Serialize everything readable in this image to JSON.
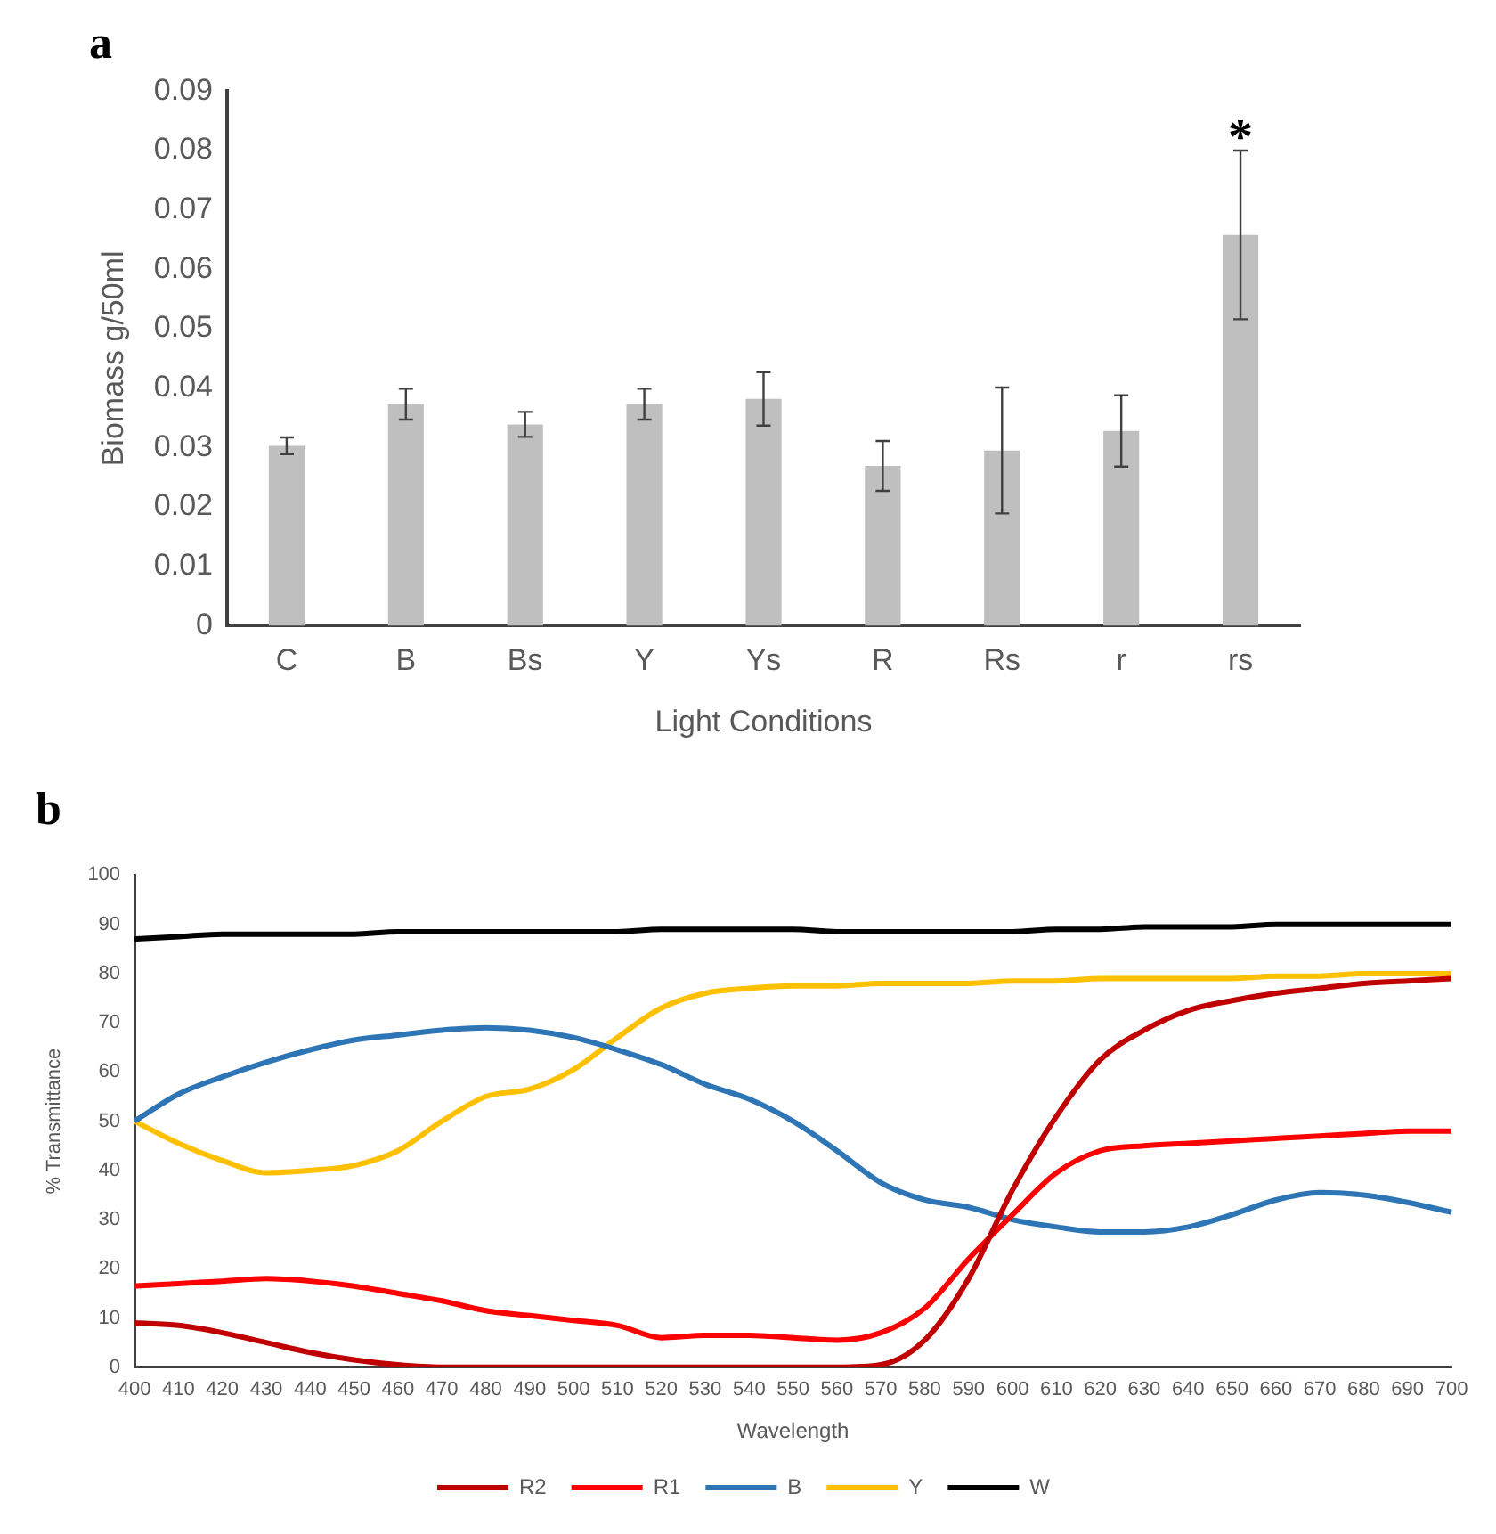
{
  "chart_data": [
    {
      "type": "bar",
      "title": "a",
      "xlabel": "Light Conditions",
      "ylabel": "Biomass g/50ml",
      "categories": [
        "C",
        "B",
        "Bs",
        "Y",
        "Ys",
        "R",
        "Rs",
        "r",
        "rs"
      ],
      "values": [
        0.0303,
        0.0373,
        0.0339,
        0.0373,
        0.0382,
        0.0269,
        0.0295,
        0.0328,
        0.0658
      ],
      "errors": [
        0.0014,
        0.0026,
        0.0021,
        0.0026,
        0.0045,
        0.0042,
        0.0106,
        0.006,
        0.0142
      ],
      "color": "#bfbfbf",
      "ylim": [
        0,
        0.09
      ],
      "yticks": [
        0,
        0.01,
        0.02,
        0.03,
        0.04,
        0.05,
        0.06,
        0.07,
        0.08,
        0.09
      ],
      "grid": false,
      "annotations": [
        "*"
      ]
    },
    {
      "type": "line",
      "title": "b",
      "xlabel": "Wavelength",
      "ylabel": "% Transmittance",
      "categories": [
        "400",
        "410",
        "420",
        "430",
        "440",
        "450",
        "460",
        "470",
        "480",
        "490",
        "500",
        "510",
        "520",
        "530",
        "540",
        "550",
        "560",
        "570",
        "580",
        "590",
        "600",
        "610",
        "620",
        "630",
        "640",
        "650",
        "660",
        "670",
        "680",
        "690",
        "700"
      ],
      "series": [
        {
          "name": "R2",
          "color": "#c00000",
          "values": [
            9,
            8.5,
            7,
            5,
            3,
            1.5,
            0.5,
            0,
            0,
            0,
            0,
            0,
            0,
            0,
            0,
            0,
            0,
            0.5,
            5.5,
            18,
            36,
            51,
            62.5,
            68.5,
            72.5,
            74.5,
            76,
            77,
            78,
            78.5,
            79
          ]
        },
        {
          "name": "R1",
          "color": "#ff0000",
          "values": [
            16.5,
            17,
            17.5,
            18,
            17.5,
            16.5,
            15,
            13.5,
            11.5,
            10.5,
            9.5,
            8.5,
            6,
            6.5,
            6.5,
            6,
            5.5,
            7,
            12,
            22,
            31,
            39.5,
            44,
            45,
            45.5,
            46,
            46.5,
            47,
            47.5,
            48,
            48
          ]
        },
        {
          "name": "B",
          "color": "#2e75b6",
          "values": [
            50,
            55.5,
            59,
            62,
            64.5,
            66.5,
            67.5,
            68.5,
            69,
            68.5,
            67,
            64.5,
            61.5,
            57.5,
            54.5,
            50,
            44,
            37.5,
            34,
            32.5,
            30,
            28.5,
            27.5,
            27.5,
            28.5,
            31,
            34,
            35.5,
            35,
            33.5,
            31.5
          ]
        },
        {
          "name": "Y",
          "color": "#ffc000",
          "values": [
            50,
            45.5,
            42,
            39.5,
            40,
            41,
            44,
            50,
            55,
            56.5,
            60.5,
            67,
            73,
            76,
            77,
            77.5,
            77.5,
            78,
            78,
            78,
            78.5,
            78.5,
            79,
            79,
            79,
            79,
            79.5,
            79.5,
            80,
            80,
            80
          ]
        },
        {
          "name": "W",
          "color": "#000000",
          "values": [
            87,
            87.5,
            88,
            88,
            88,
            88,
            88.5,
            88.5,
            88.5,
            88.5,
            88.5,
            88.5,
            89,
            89,
            89,
            89,
            88.5,
            88.5,
            88.5,
            88.5,
            88.5,
            89,
            89,
            89.5,
            89.5,
            89.5,
            90,
            90,
            90,
            90,
            90
          ]
        }
      ],
      "ylim": [
        0,
        100
      ],
      "yticks": [
        0,
        10,
        20,
        30,
        40,
        50,
        60,
        70,
        80,
        90,
        100
      ],
      "grid": false,
      "legend": "bottom"
    }
  ]
}
